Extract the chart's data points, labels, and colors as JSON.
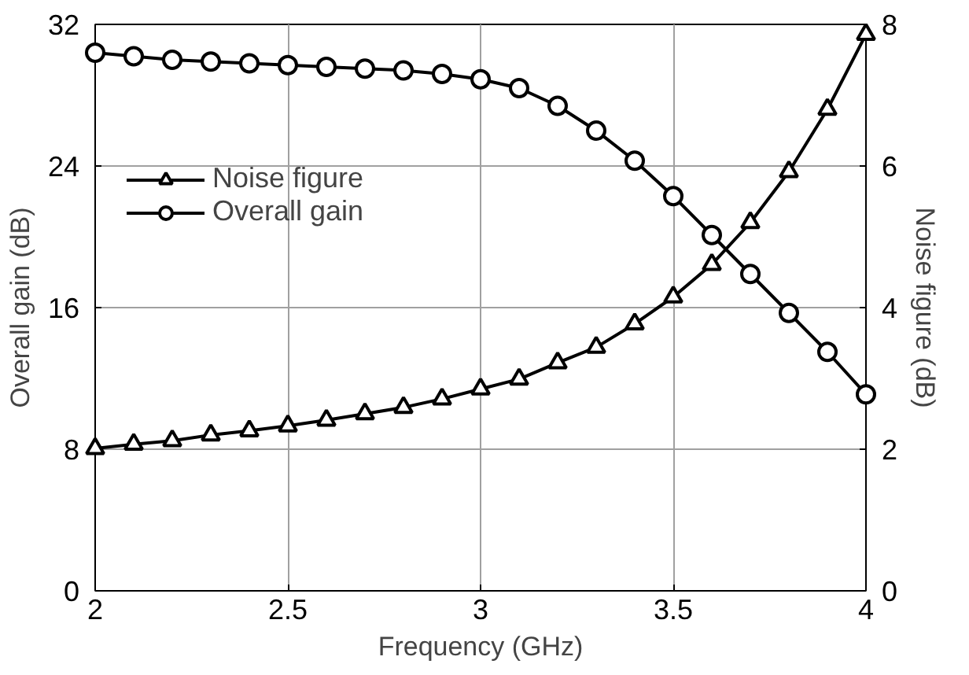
{
  "chart_data": {
    "type": "line",
    "xlabel": "Frequency (GHz)",
    "ylabel": "Overall gain (dB)",
    "y2label": "Noise figure (dB)",
    "x": [
      2.0,
      2.1,
      2.2,
      2.3,
      2.4,
      2.5,
      2.6,
      2.7,
      2.8,
      2.9,
      3.0,
      3.1,
      3.2,
      3.3,
      3.4,
      3.5,
      3.6,
      3.7,
      3.8,
      3.9,
      4.0
    ],
    "series": [
      {
        "name": "Noise figure",
        "color": "#000000",
        "marker": "triangle",
        "axis": "y2",
        "values": [
          2.01,
          2.07,
          2.12,
          2.2,
          2.26,
          2.33,
          2.41,
          2.5,
          2.59,
          2.71,
          2.85,
          2.99,
          3.22,
          3.44,
          3.77,
          4.15,
          4.61,
          5.2,
          5.92,
          6.8,
          7.86
        ]
      },
      {
        "name": "Overall gain",
        "color": "#000000",
        "marker": "circle",
        "values": [
          30.4,
          30.2,
          30.0,
          29.9,
          29.8,
          29.7,
          29.6,
          29.5,
          29.4,
          29.2,
          28.9,
          28.4,
          27.4,
          26.0,
          24.3,
          22.3,
          20.1,
          17.9,
          15.7,
          13.5,
          11.1
        ]
      }
    ],
    "xlim": [
      2,
      4
    ],
    "xticks": [
      2,
      2.5,
      3,
      3.5,
      4
    ],
    "ylim": [
      0,
      32
    ],
    "yticks": [
      0,
      8,
      16,
      24,
      32
    ],
    "y2lim": [
      0,
      8
    ],
    "y2ticks": [
      0,
      2,
      4,
      6,
      8
    ],
    "grid": true,
    "legend": "left",
    "line_style": "solid"
  }
}
